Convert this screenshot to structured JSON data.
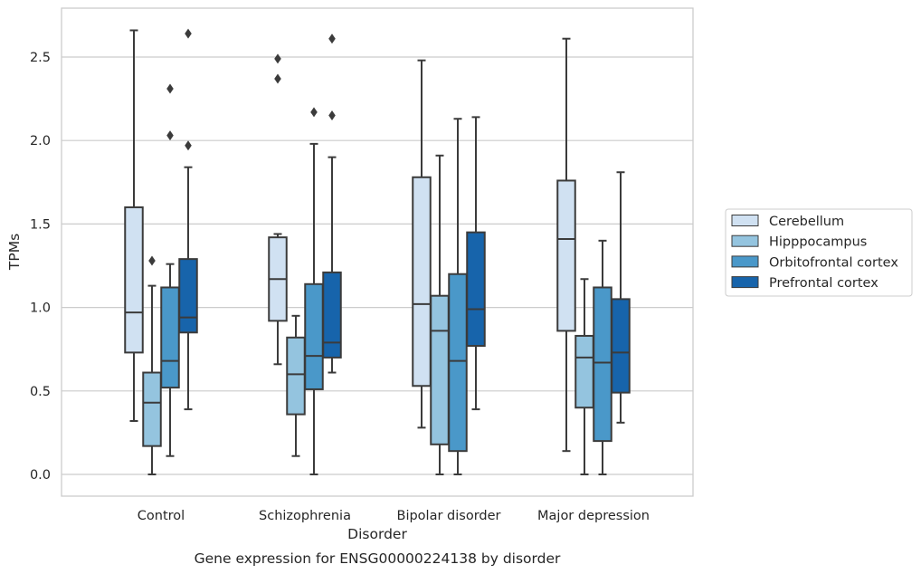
{
  "chart_data": {
    "type": "box",
    "caption": "Gene expression for ENSG00000224138 by disorder",
    "xlabel": "Disorder",
    "ylabel": "TPMs",
    "ylim": [
      -0.13,
      2.8
    ],
    "yticks": [
      0.0,
      0.5,
      1.0,
      1.5,
      2.0,
      2.5
    ],
    "ytick_labels": [
      "0.0",
      "0.5",
      "1.0",
      "1.5",
      "2.0",
      "2.5"
    ],
    "categories": [
      "Control",
      "Schizophrenia",
      "Bipolar disorder",
      "Major depression"
    ],
    "grid": "horizontal",
    "legend_position": "right",
    "colors": {
      "Cerebellum": "#d0e1f2",
      "Hipppocampus": "#94c4df",
      "Orbitofrontal cortex": "#4a98c9",
      "Prefrontal cortex": "#1764ab",
      "box_line": "#3b3b3b",
      "grid": "#cccccc",
      "frame": "#cccccc"
    },
    "series": [
      {
        "name": "Cerebellum",
        "boxes": [
          {
            "whislo": 0.32,
            "q1": 0.73,
            "med": 0.97,
            "q3": 1.6,
            "whishi": 2.66,
            "fliers": []
          },
          {
            "whislo": 0.66,
            "q1": 0.92,
            "med": 1.17,
            "q3": 1.42,
            "whishi": 1.44,
            "fliers": [
              2.37,
              2.49
            ]
          },
          {
            "whislo": 0.28,
            "q1": 0.53,
            "med": 1.02,
            "q3": 1.78,
            "whishi": 2.48,
            "fliers": []
          },
          {
            "whislo": 0.14,
            "q1": 0.86,
            "med": 1.41,
            "q3": 1.76,
            "whishi": 2.61,
            "fliers": []
          }
        ]
      },
      {
        "name": "Hipppocampus",
        "boxes": [
          {
            "whislo": 0.0,
            "q1": 0.17,
            "med": 0.43,
            "q3": 0.61,
            "whishi": 1.13,
            "fliers": [
              1.28
            ]
          },
          {
            "whislo": 0.11,
            "q1": 0.36,
            "med": 0.6,
            "q3": 0.82,
            "whishi": 0.95,
            "fliers": []
          },
          {
            "whislo": 0.0,
            "q1": 0.18,
            "med": 0.86,
            "q3": 1.07,
            "whishi": 1.91,
            "fliers": []
          },
          {
            "whislo": 0.0,
            "q1": 0.4,
            "med": 0.7,
            "q3": 0.83,
            "whishi": 1.17,
            "fliers": []
          }
        ]
      },
      {
        "name": "Orbitofrontal cortex",
        "boxes": [
          {
            "whislo": 0.11,
            "q1": 0.52,
            "med": 0.68,
            "q3": 1.12,
            "whishi": 1.26,
            "fliers": [
              2.03,
              2.31
            ]
          },
          {
            "whislo": 0.0,
            "q1": 0.51,
            "med": 0.71,
            "q3": 1.14,
            "whishi": 1.98,
            "fliers": [
              2.17
            ]
          },
          {
            "whislo": 0.0,
            "q1": 0.14,
            "med": 0.68,
            "q3": 1.2,
            "whishi": 2.13,
            "fliers": []
          },
          {
            "whislo": 0.0,
            "q1": 0.2,
            "med": 0.67,
            "q3": 1.12,
            "whishi": 1.4,
            "fliers": []
          }
        ]
      },
      {
        "name": "Prefrontal cortex",
        "boxes": [
          {
            "whislo": 0.39,
            "q1": 0.85,
            "med": 0.94,
            "q3": 1.29,
            "whishi": 1.84,
            "fliers": [
              1.97,
              2.64
            ]
          },
          {
            "whislo": 0.61,
            "q1": 0.7,
            "med": 0.79,
            "q3": 1.21,
            "whishi": 1.9,
            "fliers": [
              2.15,
              2.61
            ]
          },
          {
            "whislo": 0.39,
            "q1": 0.77,
            "med": 0.99,
            "q3": 1.45,
            "whishi": 2.14,
            "fliers": []
          },
          {
            "whislo": 0.31,
            "q1": 0.49,
            "med": 0.73,
            "q3": 1.05,
            "whishi": 1.81,
            "fliers": []
          }
        ]
      }
    ]
  }
}
